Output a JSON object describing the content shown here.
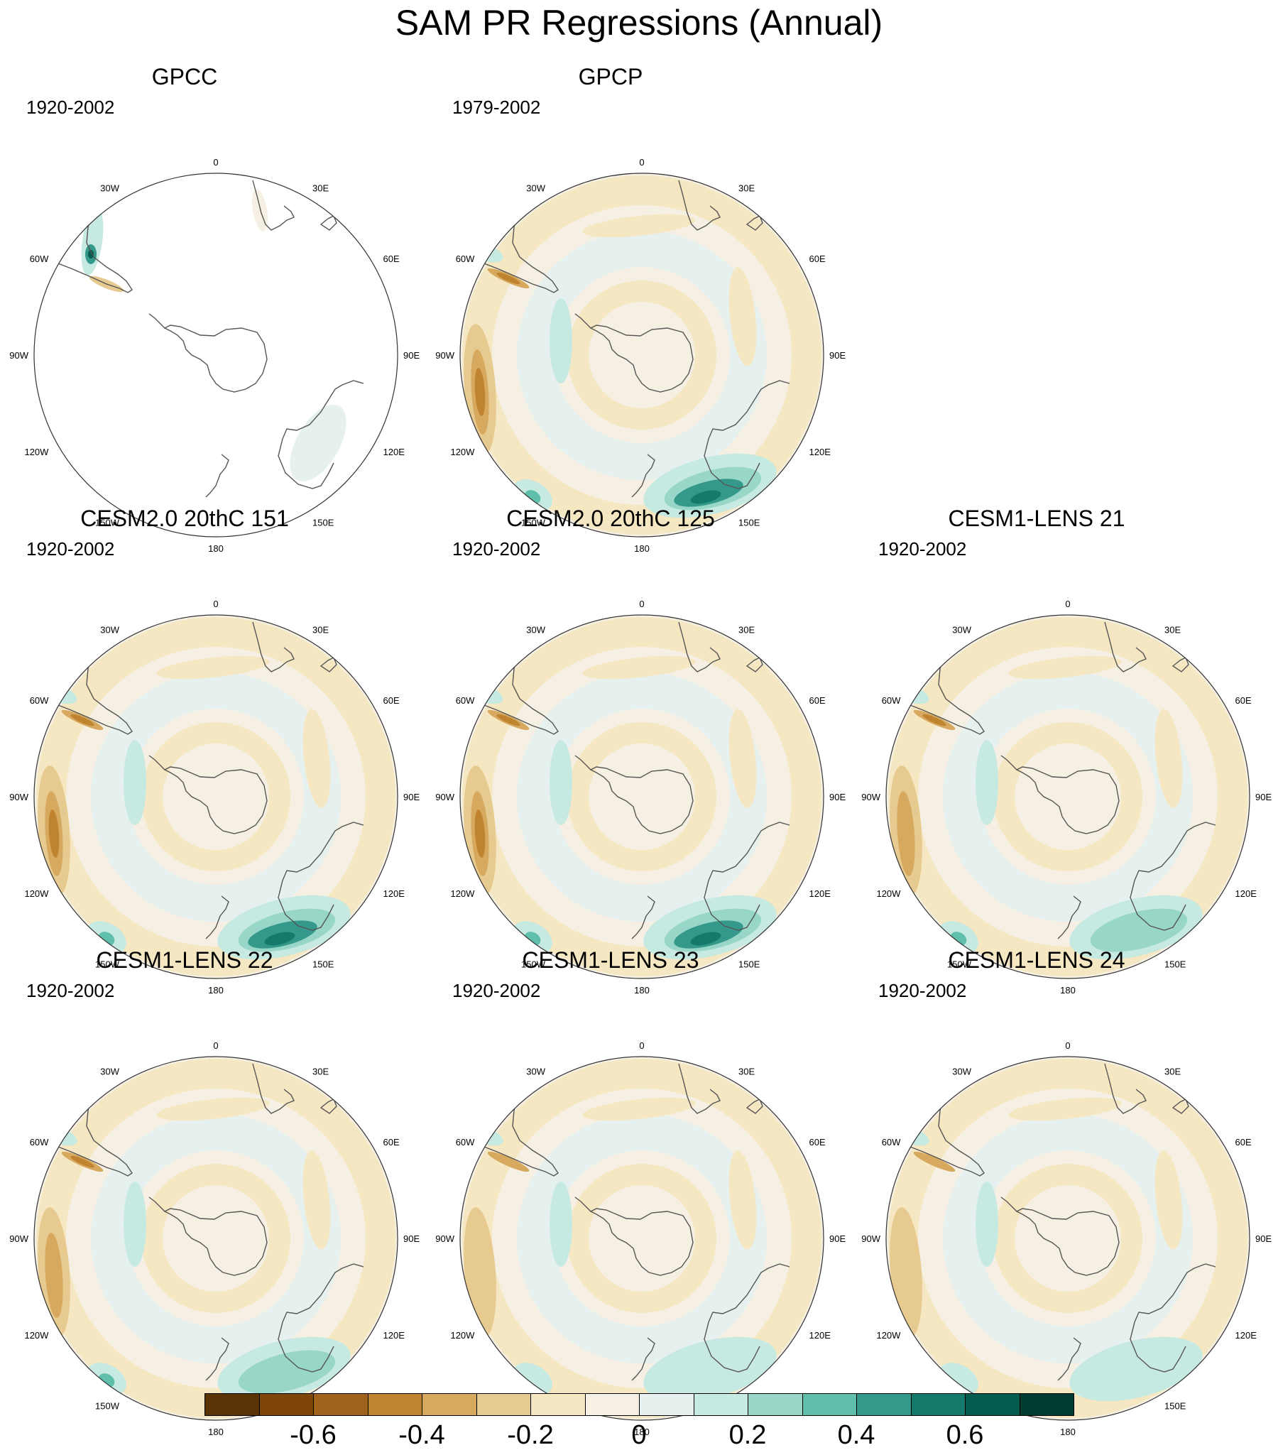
{
  "title": "SAM PR Regressions (Annual)",
  "colors": {
    "land_outline": "#555555",
    "map_border": "#333333",
    "palette": [
      "#5a3305",
      "#7e4709",
      "#a0621a",
      "#c08431",
      "#d6a95f",
      "#e7ca8f",
      "#f5e7c2",
      "#f5f0e3",
      "#e6f1ef",
      "#c6e9e1",
      "#98d6c8",
      "#5fbfab",
      "#34998a",
      "#137a6c",
      "#035c4e",
      "#003d30"
    ]
  },
  "longitude_labels": [
    "0",
    "30E",
    "60E",
    "90E",
    "120E",
    "150E",
    "180",
    "150W",
    "120W",
    "90W",
    "60W",
    "30W"
  ],
  "panels": [
    {
      "id": "gpcc",
      "title": "GPCC",
      "period": "1920-2002",
      "pattern": "gpcc"
    },
    {
      "id": "gpcp",
      "title": "GPCP",
      "period": "1979-2002",
      "pattern": "obs"
    },
    {
      "id": "cesm2-151",
      "title": "CESM2.0 20thC 151",
      "period": "1920-2002",
      "pattern": "strong"
    },
    {
      "id": "cesm2-125",
      "title": "CESM2.0 20thC 125",
      "period": "1920-2002",
      "pattern": "strong"
    },
    {
      "id": "lens-21",
      "title": "CESM1-LENS 21",
      "period": "1920-2002",
      "pattern": "moderate"
    },
    {
      "id": "lens-22",
      "title": "CESM1-LENS 22",
      "period": "1920-2002",
      "pattern": "moderate"
    },
    {
      "id": "lens-23",
      "title": "CESM1-LENS 23",
      "period": "1920-2002",
      "pattern": "weak"
    },
    {
      "id": "lens-24",
      "title": "CESM1-LENS 24",
      "period": "1920-2002",
      "pattern": "weak"
    }
  ],
  "colorbar": {
    "levels": [
      -0.7,
      -0.6,
      -0.5,
      -0.4,
      -0.3,
      -0.2,
      -0.1,
      0,
      0.1,
      0.2,
      0.3,
      0.4,
      0.5,
      0.6,
      0.7
    ],
    "tick_labels": [
      {
        "level": -0.6,
        "text": "-0.6"
      },
      {
        "level": -0.4,
        "text": "-0.4"
      },
      {
        "level": -0.2,
        "text": "-0.2"
      },
      {
        "level": 0,
        "text": "0"
      },
      {
        "level": 0.2,
        "text": "0.2"
      },
      {
        "level": 0.4,
        "text": "0.4"
      },
      {
        "level": 0.6,
        "text": "0.6"
      }
    ]
  }
}
